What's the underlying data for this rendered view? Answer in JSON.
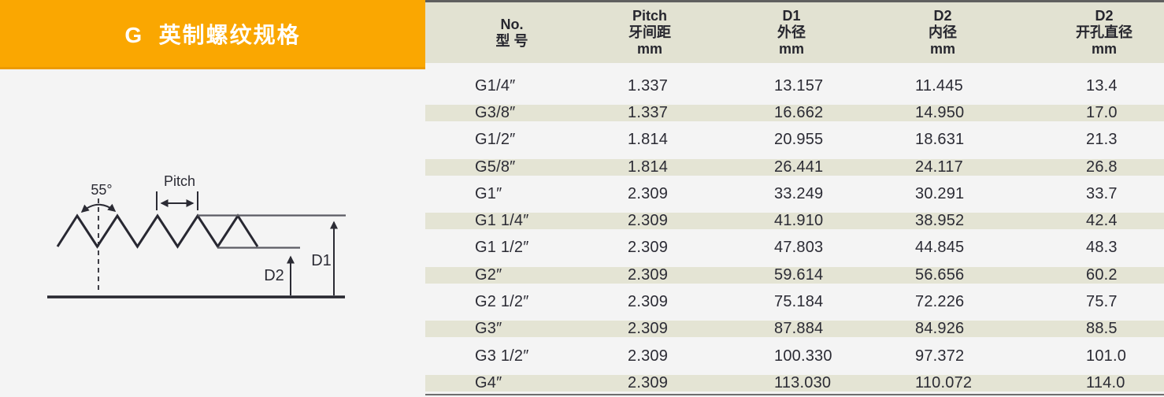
{
  "banner": {
    "title": "G  英制螺纹规格"
  },
  "diagram": {
    "angle_label": "55°",
    "pitch_label": "Pitch",
    "d1_label": "D1",
    "d2_label": "D2"
  },
  "table": {
    "columns": [
      {
        "lines": [
          "No.",
          "型 号"
        ]
      },
      {
        "lines": [
          "Pitch",
          "牙间距",
          "mm"
        ]
      },
      {
        "lines": [
          "D1",
          "外径",
          "mm"
        ]
      },
      {
        "lines": [
          "D2",
          "内径",
          "mm"
        ]
      },
      {
        "lines": [
          "D2",
          "开孔直径",
          "mm"
        ]
      }
    ],
    "rows": [
      [
        "G1/4″",
        "1.337",
        "13.157",
        "11.445",
        "13.4"
      ],
      [
        "G3/8″",
        "1.337",
        "16.662",
        "14.950",
        "17.0"
      ],
      [
        "G1/2″",
        "1.814",
        "20.955",
        "18.631",
        "21.3"
      ],
      [
        "G5/8″",
        "1.814",
        "26.441",
        "24.117",
        "26.8"
      ],
      [
        "G1″",
        "2.309",
        "33.249",
        "30.291",
        "33.7"
      ],
      [
        "G1 1/4″",
        "2.309",
        "41.910",
        "38.952",
        "42.4"
      ],
      [
        "G1 1/2″",
        "2.309",
        "47.803",
        "44.845",
        "48.3"
      ],
      [
        "G2″",
        "2.309",
        "59.614",
        "56.656",
        "60.2"
      ],
      [
        "G2 1/2″",
        "2.309",
        "75.184",
        "72.226",
        "75.7"
      ],
      [
        "G3″",
        "2.309",
        "87.884",
        "84.926",
        "88.5"
      ],
      [
        "G3 1/2″",
        "2.309",
        "100.330",
        "97.372",
        "101.0"
      ],
      [
        "G4″",
        "2.309",
        "113.030",
        "110.072",
        "114.0"
      ]
    ]
  },
  "colors": {
    "banner_orange": "#faa701",
    "banner_orange_dark": "#ec9b00",
    "header_beige": "#e2e2d2",
    "stripe_beige": "#e4e4d4",
    "page_background": "#f4f4f4",
    "ink": "#2b2b34",
    "border_grey": "#5f5f5f"
  }
}
